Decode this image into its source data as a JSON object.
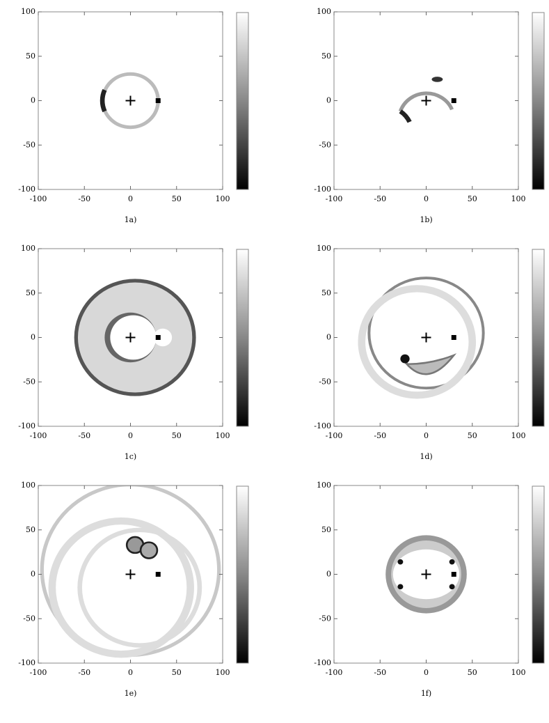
{
  "chart_data": [
    {
      "type": "image",
      "caption": "1a)",
      "xlim": [
        -100,
        100
      ],
      "ylim": [
        -100,
        100
      ],
      "xticks": [
        -100,
        -50,
        0,
        50,
        100
      ],
      "yticks": [
        -100,
        -50,
        0,
        50,
        100
      ],
      "points": [
        {
          "x": 0,
          "y": 0,
          "marker": "plus"
        },
        {
          "x": 30,
          "y": 0,
          "marker": "square"
        }
      ]
    },
    {
      "type": "image",
      "caption": "1b)",
      "xlim": [
        -100,
        100
      ],
      "ylim": [
        -100,
        100
      ],
      "xticks": [
        -100,
        -50,
        0,
        50,
        100
      ],
      "yticks": [
        -100,
        -50,
        0,
        50,
        100
      ],
      "points": [
        {
          "x": 0,
          "y": 0,
          "marker": "plus"
        },
        {
          "x": 30,
          "y": 0,
          "marker": "square"
        }
      ]
    },
    {
      "type": "image",
      "caption": "1c)",
      "xlim": [
        -100,
        100
      ],
      "ylim": [
        -100,
        100
      ],
      "xticks": [
        -100,
        -50,
        0,
        50,
        100
      ],
      "yticks": [
        -100,
        -50,
        0,
        50,
        100
      ],
      "points": [
        {
          "x": 0,
          "y": 0,
          "marker": "plus"
        },
        {
          "x": 30,
          "y": 0,
          "marker": "square"
        }
      ]
    },
    {
      "type": "image",
      "caption": "1d)",
      "xlim": [
        -100,
        100
      ],
      "ylim": [
        -100,
        100
      ],
      "xticks": [
        -100,
        -50,
        0,
        50,
        100
      ],
      "yticks": [
        -100,
        -50,
        0,
        50,
        100
      ],
      "points": [
        {
          "x": 0,
          "y": 0,
          "marker": "plus"
        },
        {
          "x": 30,
          "y": 0,
          "marker": "square"
        }
      ]
    },
    {
      "type": "image",
      "caption": "1e)",
      "xlim": [
        -100,
        100
      ],
      "ylim": [
        -100,
        100
      ],
      "xticks": [
        -100,
        -50,
        0,
        50,
        100
      ],
      "yticks": [
        -100,
        -50,
        0,
        50,
        100
      ],
      "points": [
        {
          "x": 0,
          "y": 0,
          "marker": "plus"
        },
        {
          "x": 30,
          "y": 0,
          "marker": "square"
        }
      ]
    },
    {
      "type": "image",
      "caption": "1f)",
      "xlim": [
        -100,
        100
      ],
      "ylim": [
        -100,
        100
      ],
      "xticks": [
        -100,
        -50,
        0,
        50,
        100
      ],
      "yticks": [
        -100,
        -50,
        0,
        50,
        100
      ],
      "points": [
        {
          "x": 0,
          "y": 0,
          "marker": "plus"
        },
        {
          "x": 30,
          "y": 0,
          "marker": "square"
        }
      ]
    }
  ]
}
